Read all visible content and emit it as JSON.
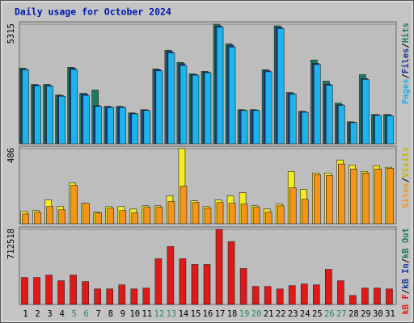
{
  "chart_data": [
    {
      "type": "bar",
      "title": "Daily usage for October 2024",
      "legend_separator": "/",
      "ylim": [
        0,
        5315
      ],
      "yticks": [
        5315
      ],
      "series": [
        {
          "name": "Hits",
          "color": "#1e7a5e",
          "values": [
            3363,
            2640,
            2640,
            2170,
            3399,
            2242,
            2387,
            1663,
            1663,
            1374,
            1519,
            3327,
            4158,
            3616,
            3110,
            3218,
            5315,
            4447,
            1519,
            1519,
            3290,
            5243,
            2278,
            1446,
            3724,
            2784,
            1808,
            976,
            3073,
            1302,
            1302
          ]
        },
        {
          "name": "Files",
          "color": "#1a3a96",
          "values": [
            3320,
            2610,
            2600,
            2140,
            3360,
            2210,
            1700,
            1640,
            1640,
            1350,
            1500,
            3290,
            4100,
            3560,
            3080,
            3190,
            5240,
            4380,
            1500,
            1500,
            3250,
            5180,
            2240,
            1420,
            3580,
            2650,
            1740,
            960,
            2900,
            1280,
            1280
          ]
        },
        {
          "name": "Pages",
          "color": "#1ab4ee",
          "values": [
            3290,
            2580,
            2560,
            2110,
            3300,
            2150,
            1660,
            1610,
            1610,
            1330,
            1480,
            3240,
            4040,
            3480,
            3050,
            3160,
            5180,
            4300,
            1480,
            1480,
            3200,
            5120,
            2200,
            1400,
            3520,
            2600,
            1710,
            940,
            2860,
            1260,
            1250
          ]
        }
      ]
    },
    {
      "type": "bar",
      "legend_separator": "/",
      "ylim": [
        0,
        486
      ],
      "yticks": [
        486
      ],
      "series": [
        {
          "name": "Visits",
          "color": "#f4ec1c",
          "text_color": "#c8b400",
          "values": [
            79,
            85,
            153,
            111,
            264,
            132,
            74,
            111,
            111,
            95,
            116,
            116,
            180,
            486,
            148,
            111,
            153,
            180,
            201,
            116,
            95,
            127,
            338,
            222,
            328,
            328,
            412,
            380,
            338,
            375,
            365
          ]
        },
        {
          "name": "Sites",
          "color": "#f79418",
          "values": [
            63,
            74,
            111,
            90,
            248,
            132,
            69,
            100,
            85,
            69,
            106,
            106,
            143,
            243,
            137,
            100,
            137,
            132,
            127,
            106,
            74,
            116,
            232,
            158,
            317,
            312,
            386,
            354,
            328,
            354,
            359
          ]
        }
      ]
    },
    {
      "type": "bar",
      "legend_separator": "/",
      "ylim": [
        0,
        712518
      ],
      "yticks": [
        712518
      ],
      "categories": [
        "1",
        "2",
        "3",
        "4",
        "5",
        "6",
        "7",
        "8",
        "9",
        "10",
        "11",
        "12",
        "13",
        "14",
        "15",
        "16",
        "17",
        "18",
        "19",
        "20",
        "21",
        "22",
        "23",
        "24",
        "25",
        "26",
        "27",
        "28",
        "29",
        "30",
        "31"
      ],
      "category_colors": [
        "#000000",
        "#000000",
        "#000000",
        "#000000",
        "#2a8a5a",
        "#2a8a5a",
        "#000000",
        "#000000",
        "#000000",
        "#000000",
        "#000000",
        "#2a8a5a",
        "#2a8a5a",
        "#000000",
        "#000000",
        "#000000",
        "#000000",
        "#000000",
        "#2a8a5a",
        "#2a8a5a",
        "#000000",
        "#000000",
        "#000000",
        "#000000",
        "#000000",
        "#2a8a5a",
        "#2a8a5a",
        "#000000",
        "#000000",
        "#000000",
        "#000000"
      ],
      "series": [
        {
          "name": "kB Out",
          "color": "#1e7a5e",
          "values": [
            0,
            0,
            0,
            0,
            0,
            0,
            0,
            0,
            0,
            0,
            0,
            0,
            0,
            0,
            0,
            0,
            0,
            0,
            0,
            0,
            0,
            0,
            0,
            0,
            0,
            0,
            0,
            0,
            0,
            0,
            0
          ]
        },
        {
          "name": "kB In",
          "color": "#1a3a96",
          "values": [
            0,
            0,
            0,
            0,
            0,
            0,
            0,
            0,
            0,
            0,
            0,
            0,
            0,
            0,
            0,
            0,
            0,
            0,
            0,
            0,
            0,
            0,
            0,
            0,
            0,
            0,
            0,
            0,
            0,
            0,
            0
          ]
        },
        {
          "name": "kB F",
          "color": "#e01818",
          "values": [
            255585,
            255585,
            278820,
            224605,
            278820,
            216860,
            147155,
            147155,
            185880,
            147155,
            154900,
            433720,
            549895,
            433720,
            379505,
            379505,
            712518,
            596365,
            340780,
            170390,
            170390,
            147155,
            178135,
            193625,
            185880,
            333035,
            224605,
            85195,
            154900,
            154900,
            147155
          ]
        }
      ]
    }
  ]
}
